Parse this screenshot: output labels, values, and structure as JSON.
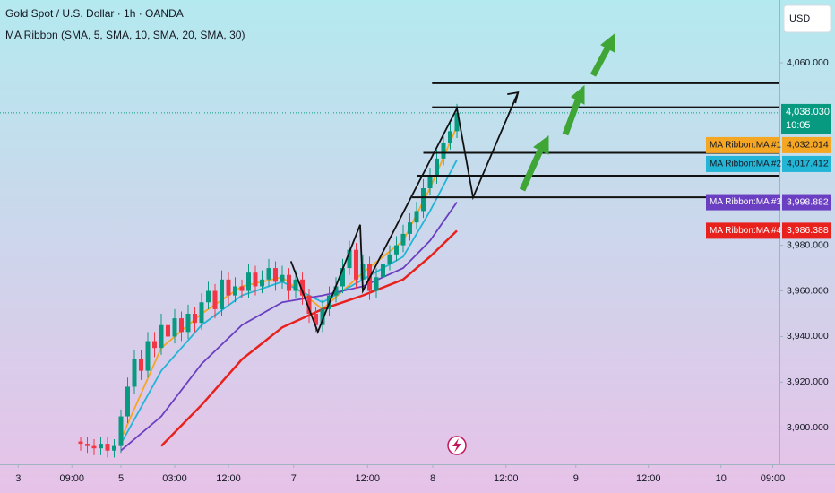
{
  "chart_data": {
    "type": "candlestick",
    "title": "Gold Spot / U.S. Dollar · 1h · OANDA",
    "subtitle": "MA Ribbon (SMA, 5, SMA, 10, SMA, 20, SMA, 30)",
    "currency": "USD",
    "xlim": [
      0,
      116
    ],
    "ylim": [
      3884,
      4087.5
    ],
    "xticks": [
      {
        "value": 2.7,
        "label": "3"
      },
      {
        "value": 10.7,
        "label": "09:00"
      },
      {
        "value": 18,
        "label": "5"
      },
      {
        "value": 26,
        "label": "03:00"
      },
      {
        "value": 34,
        "label": "12:00"
      },
      {
        "value": 43.7,
        "label": "7"
      },
      {
        "value": 54.7,
        "label": "12:00"
      },
      {
        "value": 64.4,
        "label": "8"
      },
      {
        "value": 75.3,
        "label": "12:00"
      },
      {
        "value": 85.7,
        "label": "9"
      },
      {
        "value": 96.5,
        "label": "12:00"
      },
      {
        "value": 107.3,
        "label": "10"
      },
      {
        "value": 115,
        "label": "09:00"
      }
    ],
    "yticks": [
      {
        "value": 4060,
        "label": "4,060.000"
      },
      {
        "value": 3980,
        "label": "3,980.000"
      },
      {
        "value": 3960,
        "label": "3,960.000"
      },
      {
        "value": 3940,
        "label": "3,940.000"
      },
      {
        "value": 3920,
        "label": "3,920.000"
      },
      {
        "value": 3900,
        "label": "3,900.000"
      }
    ],
    "up_color": "#089981",
    "down_color": "#f23645",
    "candles": {
      "x": [
        12,
        13,
        14,
        15,
        16,
        17,
        18,
        19,
        20,
        21,
        22,
        23,
        24,
        25,
        26,
        27,
        28,
        29,
        30,
        31,
        32,
        33,
        34,
        35,
        36,
        37,
        38,
        39,
        40,
        41,
        42,
        43,
        44,
        45,
        46,
        47,
        48,
        49,
        50,
        51,
        52,
        53,
        54,
        55,
        56,
        57,
        58,
        59,
        60,
        61,
        62,
        63,
        64,
        65,
        66,
        67,
        68
      ],
      "open": [
        3894,
        3893,
        3892,
        3891,
        3893,
        3890,
        3892,
        3905,
        3918,
        3930,
        3925,
        3938,
        3935,
        3945,
        3940,
        3948,
        3942,
        3950,
        3946,
        3955,
        3960,
        3952,
        3965,
        3958,
        3962,
        3960,
        3968,
        3962,
        3965,
        3970,
        3964,
        3967,
        3960,
        3965,
        3958,
        3950,
        3945,
        3952,
        3958,
        3962,
        3970,
        3978,
        3965,
        3972,
        3960,
        3966,
        3972,
        3976,
        3980,
        3985,
        3990,
        3995,
        4005,
        4010,
        4018,
        4025,
        4030
      ],
      "high": [
        3896,
        3896,
        3895,
        3896,
        3896,
        3895,
        3908,
        3922,
        3934,
        3934,
        3942,
        3942,
        3950,
        3949,
        3952,
        3951,
        3954,
        3953,
        3959,
        3964,
        3963,
        3969,
        3968,
        3966,
        3965,
        3972,
        3971,
        3969,
        3974,
        3973,
        3971,
        3970,
        3969,
        3968,
        3961,
        3953,
        3956,
        3962,
        3966,
        3974,
        3982,
        3981,
        3976,
        3975,
        3970,
        3976,
        3980,
        3984,
        3989,
        3994,
        3999,
        4009,
        4014,
        4022,
        4029,
        4034,
        4042
      ],
      "low": [
        3890,
        3889,
        3888,
        3888,
        3887,
        3887,
        3889,
        3902,
        3915,
        3921,
        3922,
        3931,
        3932,
        3936,
        3937,
        3938,
        3939,
        3942,
        3943,
        3952,
        3948,
        3949,
        3954,
        3955,
        3957,
        3957,
        3958,
        3959,
        3962,
        3960,
        3961,
        3956,
        3957,
        3954,
        3946,
        3942,
        3942,
        3949,
        3955,
        3959,
        3967,
        3961,
        3962,
        3956,
        3957,
        3963,
        3969,
        3973,
        3977,
        3982,
        3987,
        3992,
        4002,
        4007,
        4015,
        4022,
        4027
      ],
      "close": [
        3893,
        3892,
        3891,
        3893,
        3890,
        3892,
        3905,
        3918,
        3930,
        3925,
        3938,
        3935,
        3945,
        3940,
        3948,
        3942,
        3950,
        3946,
        3955,
        3960,
        3952,
        3965,
        3958,
        3962,
        3960,
        3968,
        3962,
        3965,
        3970,
        3964,
        3967,
        3960,
        3965,
        3958,
        3950,
        3945,
        3952,
        3958,
        3962,
        3970,
        3978,
        3965,
        3972,
        3960,
        3966,
        3972,
        3976,
        3980,
        3985,
        3990,
        3995,
        4005,
        4010,
        4018,
        4025,
        4030,
        4038
      ]
    },
    "price_label": {
      "value": 4038.03,
      "label": "4,038.030",
      "countdown": "10:05",
      "color": "#089981"
    },
    "ma_x": [
      18,
      24,
      30,
      36,
      42,
      48,
      54,
      60,
      64,
      68
    ],
    "series": [
      {
        "name": "MA Ribbon:MA #1",
        "color": "#f5a623",
        "values": [
          3895,
          3935,
          3950,
          3962,
          3966,
          3952,
          3968,
          3982,
          4005,
          4032.014
        ],
        "value_labels": [
          null,
          null,
          null,
          null,
          null,
          null,
          null,
          null,
          null,
          "4,032.014"
        ]
      },
      {
        "name": "MA Ribbon:MA #2",
        "color": "#22b5d6",
        "values": [
          3893,
          3925,
          3945,
          3958,
          3964,
          3955,
          3965,
          3975,
          3995,
          4017.412
        ],
        "value_labels": [
          null,
          null,
          null,
          null,
          null,
          null,
          null,
          null,
          null,
          "4,017.412"
        ]
      },
      {
        "name": "MA Ribbon:MA #3",
        "color": "#6a3fc1",
        "values": [
          3890,
          3905,
          3928,
          3945,
          3955,
          3958,
          3962,
          3970,
          3982,
          3998.882
        ],
        "value_labels": [
          null,
          null,
          null,
          null,
          null,
          null,
          null,
          null,
          null,
          "3,998.882"
        ]
      },
      {
        "name": "MA Ribbon:MA #4",
        "color": "#e8211d",
        "values": [
          null,
          3892,
          3910,
          3930,
          3944,
          3952,
          3958,
          3965,
          3975,
          3986.388
        ],
        "value_labels": [
          null,
          null,
          null,
          null,
          null,
          null,
          null,
          null,
          null,
          "3,986.388"
        ]
      }
    ],
    "levels": [
      {
        "y": 4051,
        "x0": 64.3
      },
      {
        "y": 4040.5,
        "x0": 64.3
      },
      {
        "y": 4020.5,
        "x0": 63
      },
      {
        "y": 4010.5,
        "x0": 62
      },
      {
        "y": 4001,
        "x0": 61.3
      }
    ],
    "path": {
      "x": [
        43.3,
        47.3,
        53.6,
        54,
        68,
        70.4,
        77.1
      ],
      "y": [
        3973,
        3942,
        3989,
        3960,
        4040,
        4001,
        4047
      ]
    }
  }
}
